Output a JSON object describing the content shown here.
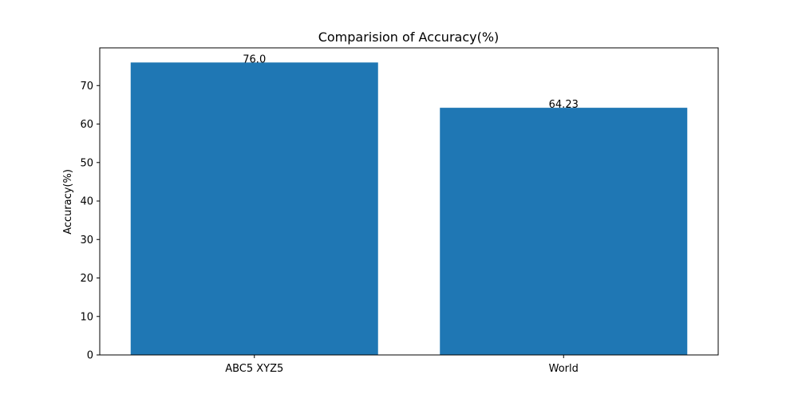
{
  "chart_data": {
    "type": "bar",
    "title": "Comparision of Accuracy(%)",
    "xlabel": "",
    "ylabel": "Accuracy(%)",
    "categories": [
      "ABC5 XYZ5",
      "World"
    ],
    "values": [
      76.0,
      64.23
    ],
    "data_labels": [
      "76.0",
      "64.23"
    ],
    "ylim": [
      0,
      79.8
    ],
    "yticks": [
      0,
      10,
      20,
      30,
      40,
      50,
      60,
      70
    ],
    "bar_color": "#1f77b4",
    "grid": false,
    "legend": "none"
  }
}
